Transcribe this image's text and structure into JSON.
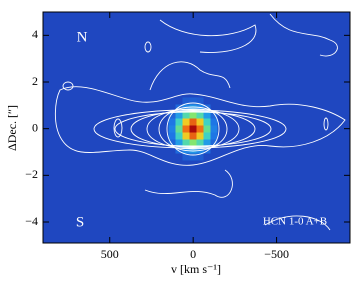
{
  "chart_data": {
    "type": "image",
    "xlabel": "v [km s⁻¹]",
    "ylabel": "ΔDec. [″]",
    "xlim": [
      900,
      -940
    ],
    "ylim": [
      -4.9,
      5
    ],
    "xticks": [
      500,
      0,
      {
        "value": -500,
        "label": "−500"
      }
    ],
    "yticks": [
      {
        "value": -4,
        "label": "−4"
      },
      {
        "value": -2,
        "label": "−2"
      },
      0,
      2,
      4
    ],
    "annotations": [
      "N",
      "S",
      "HCN 1-0 A+B"
    ]
  }
}
